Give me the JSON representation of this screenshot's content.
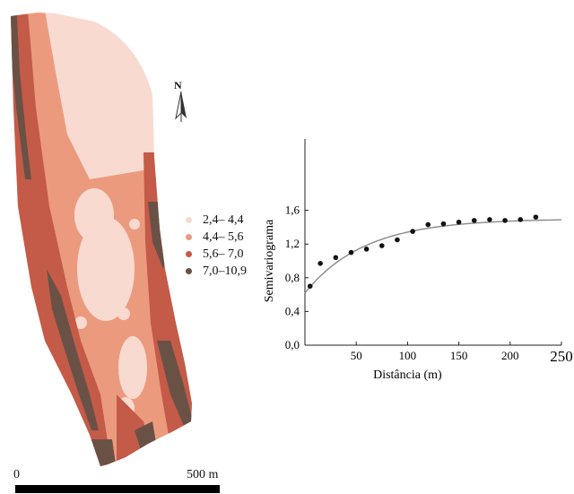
{
  "map": {
    "north_label": "N",
    "legend": [
      {
        "label": "2,4– 4,4",
        "color": "#f9dad0"
      },
      {
        "label": "4,4– 5,6",
        "color": "#ec9a7e"
      },
      {
        "label": "5,6– 7,0",
        "color": "#c45a48"
      },
      {
        "label": "7,0–10,9",
        "color": "#6a5146"
      }
    ],
    "scale": {
      "start_label": "0",
      "end_label": "500 m"
    }
  },
  "chart_data": {
    "type": "scatter",
    "xlabel": "Distância (m)",
    "ylabel": "Semivariograma",
    "xlim": [
      0,
      250
    ],
    "ylim": [
      0,
      2.0
    ],
    "xticks": [
      50,
      100,
      150,
      200,
      250
    ],
    "xtick_labels": [
      "50",
      "100",
      "150",
      "200",
      "250"
    ],
    "yticks": [
      0,
      0.4,
      0.8,
      1.2,
      1.6
    ],
    "ytick_labels": [
      "0,0",
      "0,4",
      "0,8",
      "1,2",
      "1,6"
    ],
    "grid": false,
    "points": {
      "x": [
        5,
        15,
        30,
        45,
        60,
        75,
        90,
        105,
        120,
        135,
        150,
        165,
        180,
        195,
        210,
        225
      ],
      "y": [
        0.7,
        0.97,
        1.04,
        1.1,
        1.14,
        1.18,
        1.25,
        1.35,
        1.43,
        1.44,
        1.46,
        1.48,
        1.49,
        1.48,
        1.49,
        1.52
      ]
    },
    "model_curve": {
      "nugget": 0.62,
      "sill": 1.5,
      "range": 175
    }
  }
}
